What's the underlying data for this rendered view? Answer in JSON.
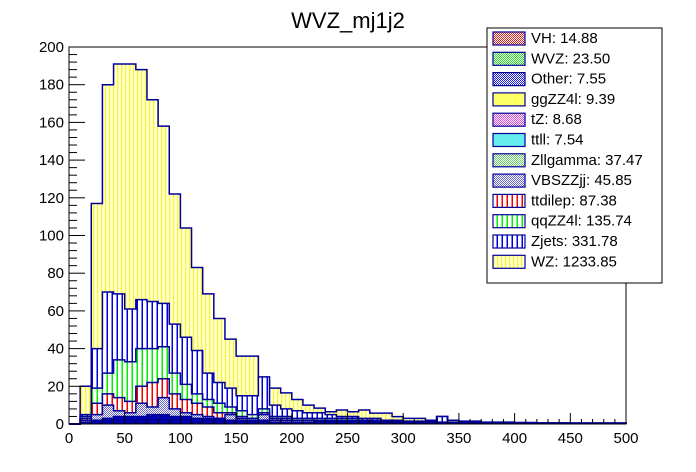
{
  "chart_data": {
    "type": "bar",
    "stacked": true,
    "title": "WVZ_mj1j2",
    "xlabel": "",
    "ylabel": "",
    "xlim": [
      0,
      500
    ],
    "ylim": [
      0,
      200
    ],
    "bin_width": 10,
    "x_ticks": [
      "0",
      "50",
      "100",
      "150",
      "200",
      "250",
      "300",
      "350",
      "400",
      "450",
      "500"
    ],
    "y_ticks": [
      "0",
      "20",
      "40",
      "60",
      "80",
      "100",
      "120",
      "140",
      "160",
      "180",
      "200"
    ],
    "legend_position": "top-right",
    "legend": [
      {
        "label": "VH: 14.88",
        "color": "#e03030",
        "pattern": "checker"
      },
      {
        "label": "WVZ: 23.50",
        "color": "#33dd33",
        "pattern": "checker"
      },
      {
        "label": "Other: 7.55",
        "color": "#1a1aee",
        "pattern": "checker"
      },
      {
        "label": "ggZZ4l: 9.39",
        "color": "#ffff55",
        "pattern": "solid"
      },
      {
        "label": "tZ: 8.68",
        "color": "#dd44dd",
        "pattern": "checker"
      },
      {
        "label": "ttll: 7.54",
        "color": "#55eeee",
        "pattern": "solid"
      },
      {
        "label": "Zllgamma: 37.47",
        "color": "#88dd88",
        "pattern": "checker"
      },
      {
        "label": "VBSZZjj: 45.85",
        "color": "#6666cc",
        "pattern": "checker"
      },
      {
        "label": "ttdilep: 87.38",
        "color": "#ee0000",
        "pattern": "vlines"
      },
      {
        "label": "qqZZ4l: 135.74",
        "color": "#00ee00",
        "pattern": "vlines"
      },
      {
        "label": "Zjets: 331.78",
        "color": "#0000dd",
        "pattern": "vlines"
      },
      {
        "label": "WZ: 1233.85",
        "color": "#ffff00",
        "pattern": "vlines"
      }
    ],
    "series_order_bottom_to_top": [
      "Other+small",
      "VH",
      "WVZ",
      "Zllgamma",
      "VBSZZjj",
      "ttdilep",
      "qqZZ4l",
      "Zjets",
      "WZ"
    ],
    "cumulative_tops": {
      "small_bg": [
        0,
        1,
        2,
        3,
        4,
        4,
        4,
        5,
        5,
        4,
        4,
        3,
        3,
        3,
        2,
        2,
        2,
        2,
        1,
        1,
        1,
        1,
        1,
        1,
        1,
        1,
        1,
        1,
        0.5,
        0.5,
        0.5,
        0.5,
        0.5,
        0.5,
        0.5,
        0.5,
        0.3,
        0.3,
        0.3,
        0.3,
        0.3,
        0.3,
        0.3,
        0.3,
        0.3,
        0.3,
        0.3,
        0.3,
        0.3,
        0.3
      ],
      "vbs_zll": [
        0,
        2,
        5,
        10,
        7,
        6,
        11,
        9,
        14,
        8,
        6,
        5,
        4,
        3,
        5,
        3,
        3,
        5,
        2,
        2,
        2,
        2,
        1.5,
        1.5,
        1.5,
        1.5,
        1,
        1,
        1,
        1,
        0.5,
        0.5,
        0.5,
        0.5,
        0.5,
        0.5,
        0.3,
        0.3,
        0.3,
        0.3,
        0.3,
        0.3,
        0.3,
        0.3,
        0.3,
        0.3,
        0.3,
        0.3,
        0.3,
        0.3
      ],
      "ttdilep": [
        0,
        3,
        11,
        16,
        14,
        12,
        20,
        22,
        24,
        16,
        13,
        11,
        9,
        6,
        6,
        4,
        3,
        6,
        3,
        3,
        2,
        2,
        2,
        2,
        2,
        2,
        1.5,
        1.5,
        1,
        1,
        0.8,
        0.8,
        0.8,
        0.8,
        0.6,
        0.6,
        0.4,
        0.4,
        0.4,
        0.4,
        0.3,
        0.3,
        0.3,
        0.3,
        0.3,
        0.3,
        0.3,
        0.3,
        0.3,
        0.3
      ],
      "qqZZ4l": [
        0,
        4,
        19,
        27,
        34,
        33,
        40,
        40,
        41,
        27,
        21,
        16,
        13,
        11,
        9,
        7,
        5,
        8,
        4,
        4,
        3,
        3,
        3,
        3,
        3,
        3,
        2,
        2,
        1.5,
        1.5,
        1,
        1,
        1,
        1,
        0.8,
        0.8,
        0.5,
        0.5,
        0.5,
        0.5,
        0.4,
        0.4,
        0.4,
        0.4,
        0.3,
        0.3,
        0.3,
        0.3,
        0.3,
        0.3
      ],
      "Zjets": [
        0,
        5,
        40,
        70,
        69,
        61,
        66,
        65,
        64,
        53,
        46,
        39,
        27,
        22,
        19,
        15,
        15,
        25,
        10,
        8,
        7,
        6,
        6,
        5,
        4,
        4,
        3,
        3,
        2,
        2,
        1.5,
        1.5,
        1.5,
        4,
        1,
        1,
        1,
        0.8,
        0.8,
        0.8,
        0.6,
        0.6,
        0.6,
        0.6,
        0.5,
        0.5,
        0.5,
        0.5,
        0.5,
        0.5
      ],
      "WZ": [
        0,
        20,
        117,
        180,
        191,
        191,
        188,
        172,
        158,
        122,
        104,
        83,
        69,
        56,
        45,
        36,
        36,
        23,
        19,
        16.5,
        13,
        10,
        8.4,
        6.5,
        7.4,
        6.5,
        7.4,
        5.8,
        5.8,
        3.9,
        3,
        3,
        2,
        4,
        2,
        1.5,
        1.5,
        1,
        1,
        1,
        0.8,
        0.8,
        0.6,
        0.6,
        0.6,
        0.5,
        0.5,
        0.5,
        0.5,
        0.5
      ]
    }
  }
}
